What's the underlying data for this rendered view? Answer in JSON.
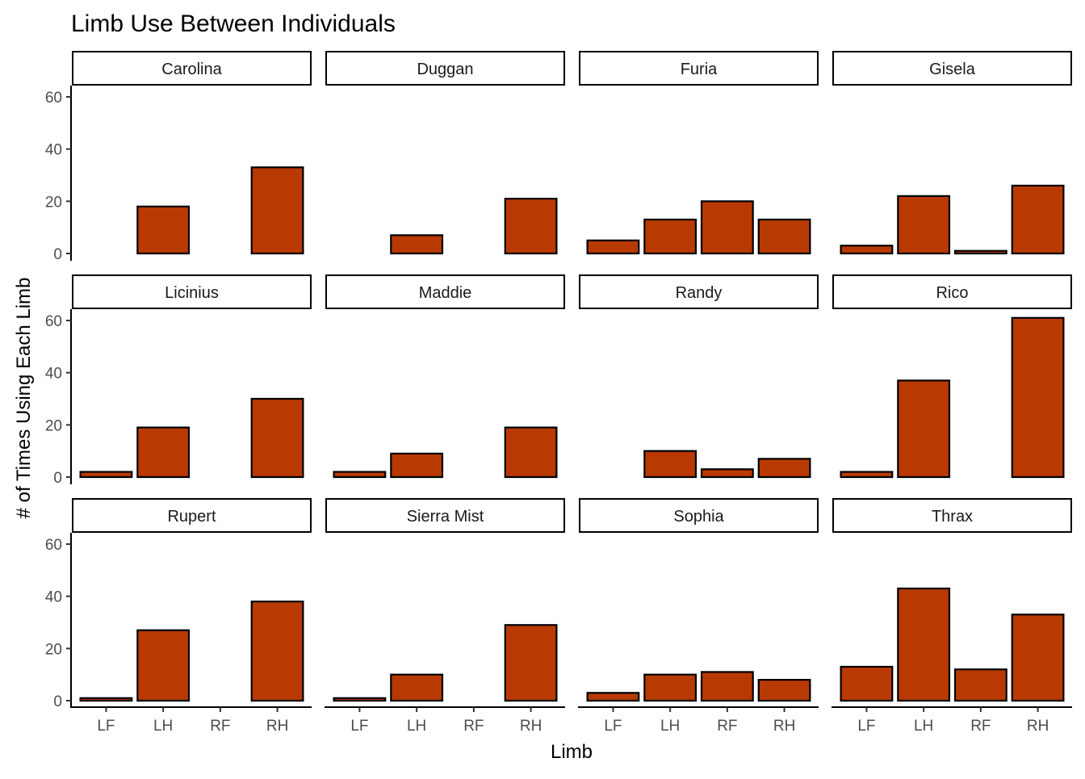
{
  "chart_data": {
    "type": "bar",
    "title": "Limb Use Between Individuals",
    "xlabel": "Limb",
    "ylabel": "# of Times Using Each Limb",
    "categories": [
      "LF",
      "LH",
      "RF",
      "RH"
    ],
    "ylim": [
      0,
      60
    ],
    "yticks": [
      0,
      20,
      40,
      60
    ],
    "bar_color": "#b83a02",
    "bar_outline": "#000000",
    "grid": false,
    "layout": "facet-wrap-4-columns",
    "facets": [
      {
        "name": "Carolina",
        "values": [
          0,
          18,
          0,
          33
        ]
      },
      {
        "name": "Duggan",
        "values": [
          0,
          7,
          0,
          21
        ]
      },
      {
        "name": "Furia",
        "values": [
          5,
          13,
          20,
          13
        ]
      },
      {
        "name": "Gisela",
        "values": [
          3,
          22,
          1,
          26
        ]
      },
      {
        "name": "Licinius",
        "values": [
          2,
          19,
          0,
          30
        ]
      },
      {
        "name": "Maddie",
        "values": [
          2,
          9,
          0,
          19
        ]
      },
      {
        "name": "Randy",
        "values": [
          0,
          10,
          3,
          7
        ]
      },
      {
        "name": "Rico",
        "values": [
          2,
          37,
          0,
          61
        ]
      },
      {
        "name": "Rupert",
        "values": [
          1,
          27,
          0,
          38
        ]
      },
      {
        "name": "Sierra Mist",
        "values": [
          1,
          10,
          0,
          29
        ]
      },
      {
        "name": "Sophia",
        "values": [
          3,
          10,
          11,
          8
        ]
      },
      {
        "name": "Thrax",
        "values": [
          13,
          43,
          12,
          33
        ]
      }
    ]
  }
}
